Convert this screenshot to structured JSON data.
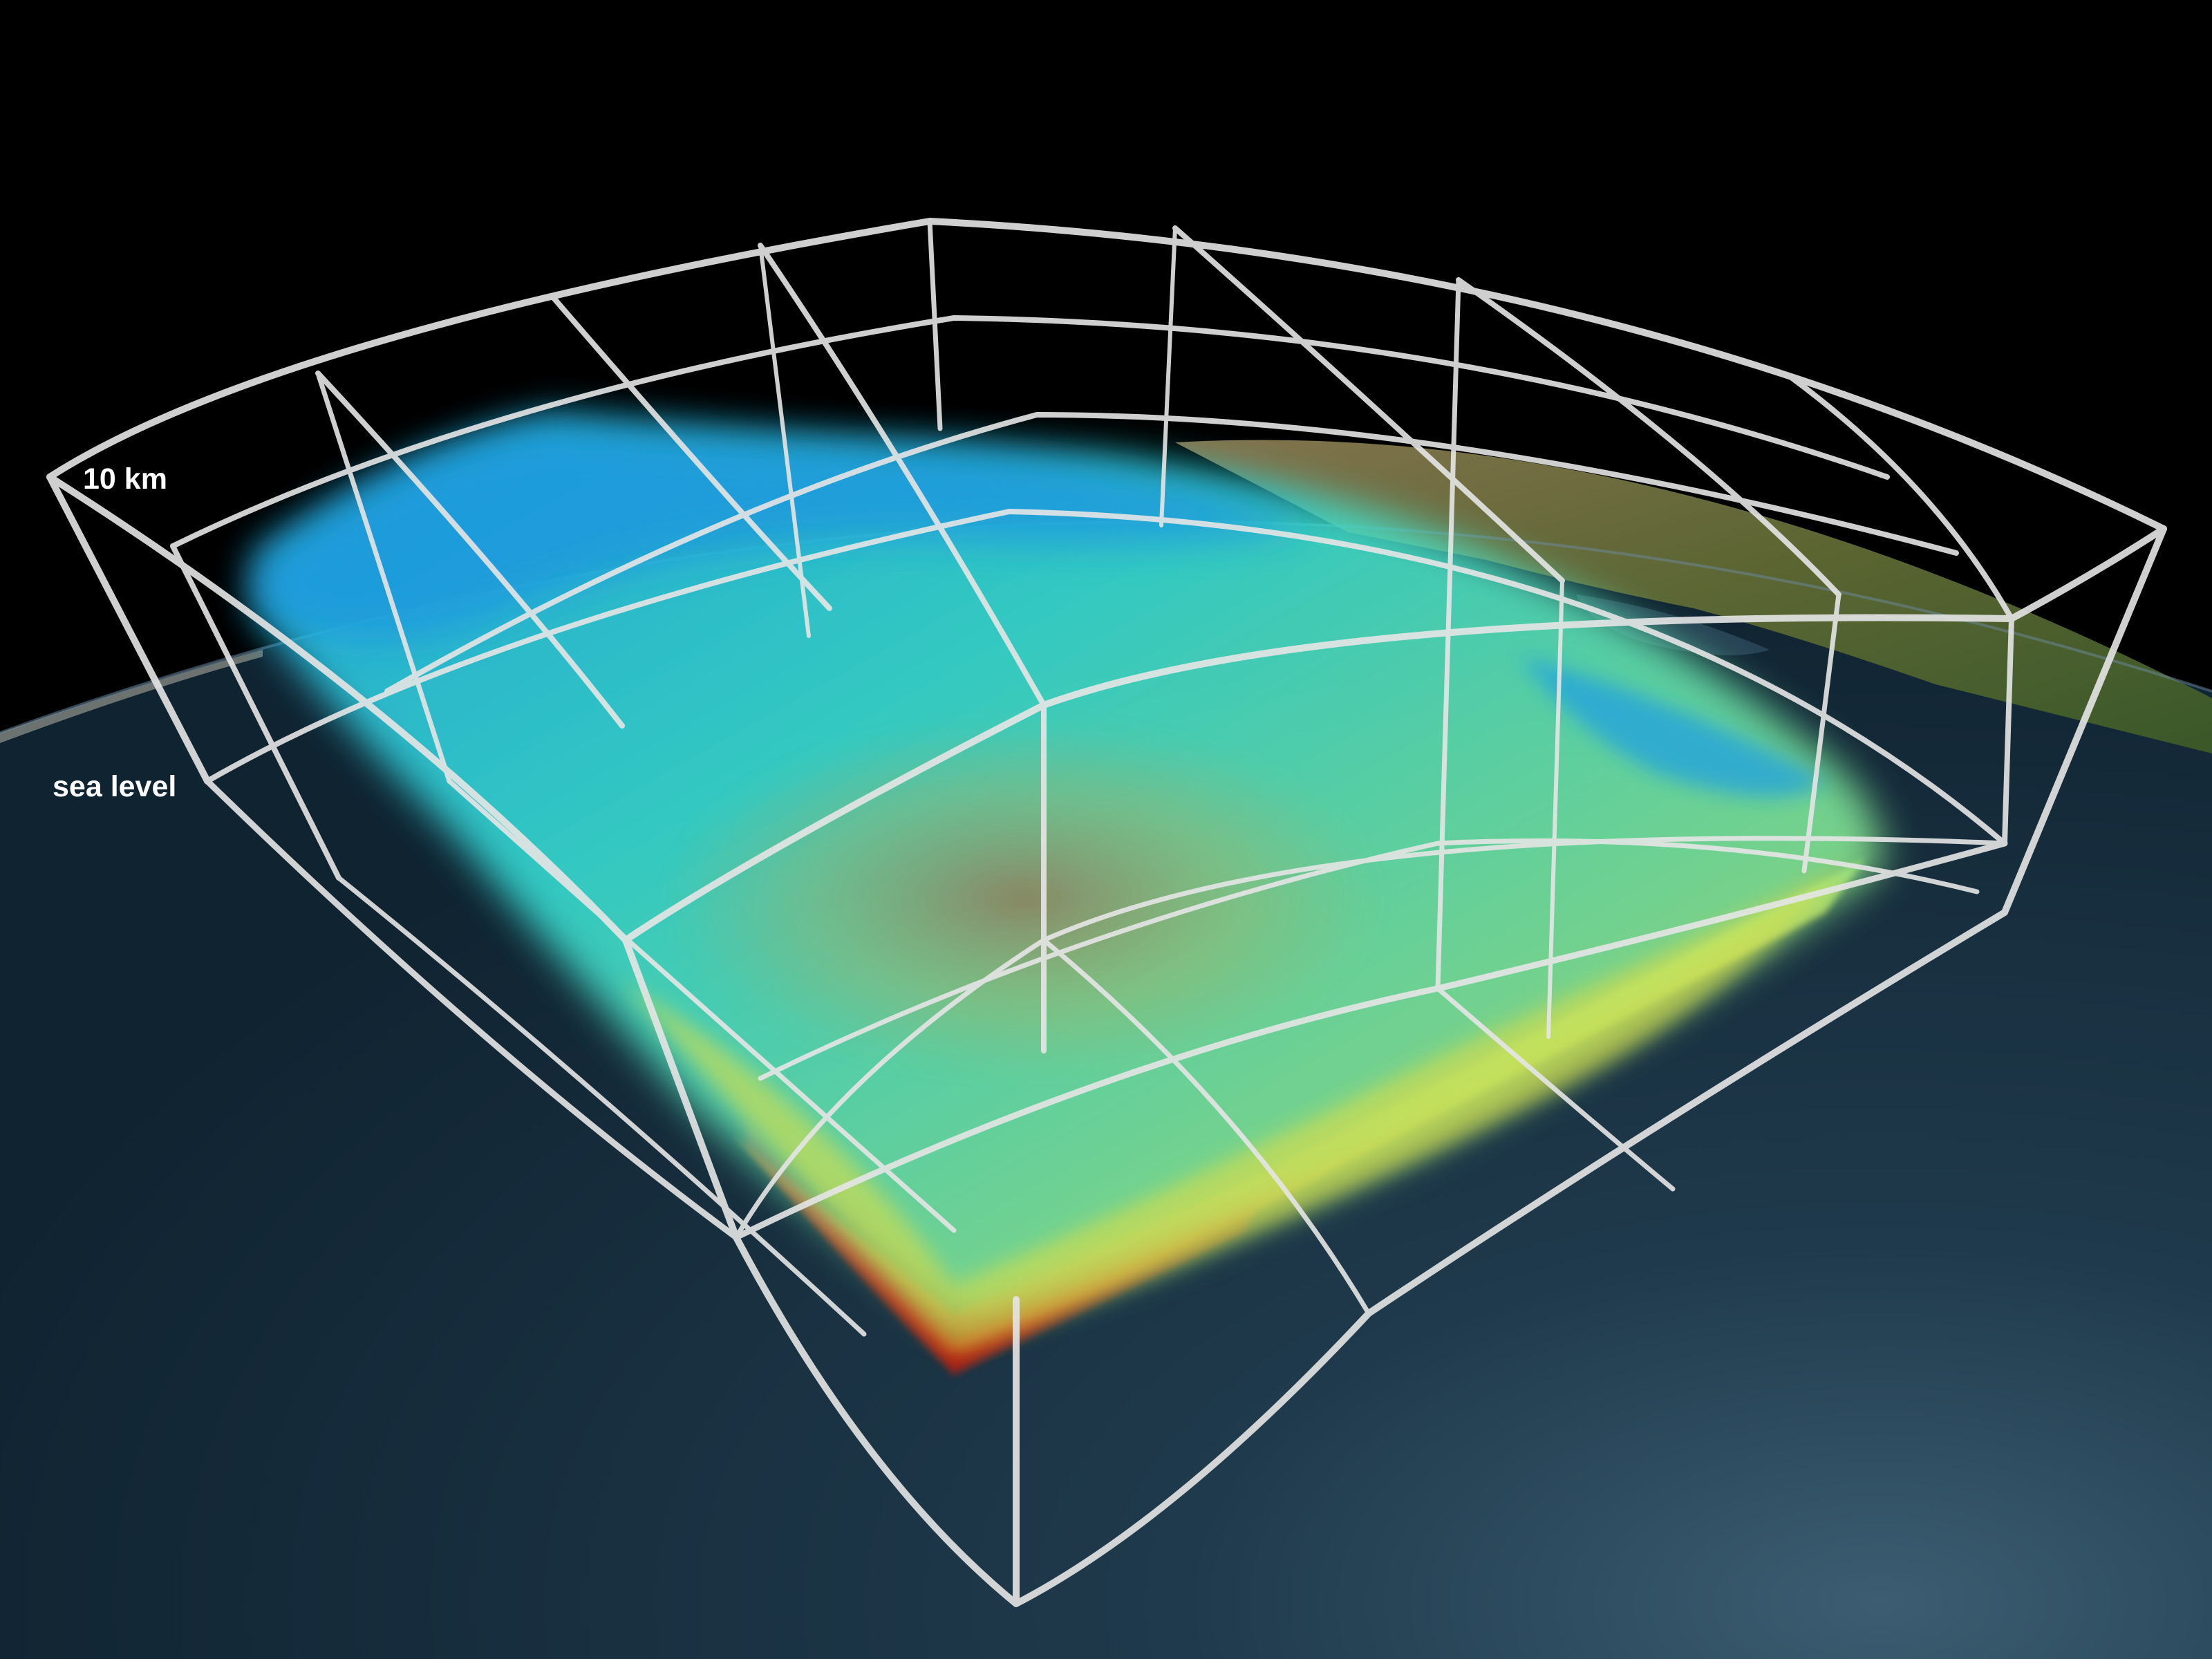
{
  "labels": {
    "top_altitude": "10 km",
    "bottom_altitude": "sea level"
  },
  "colors": {
    "space": "#000000",
    "ocean": "#1b3446",
    "land": "#6e6a3c",
    "grid": "#e6e6e6",
    "cloud_high": "#1aa6e6",
    "cloud_mid": "#30e0d0",
    "cloud_low": "#e6e040",
    "cloud_base": "#e02020"
  },
  "icons": [
    "earth-globe",
    "volume-grid-box",
    "cloud-volume"
  ]
}
